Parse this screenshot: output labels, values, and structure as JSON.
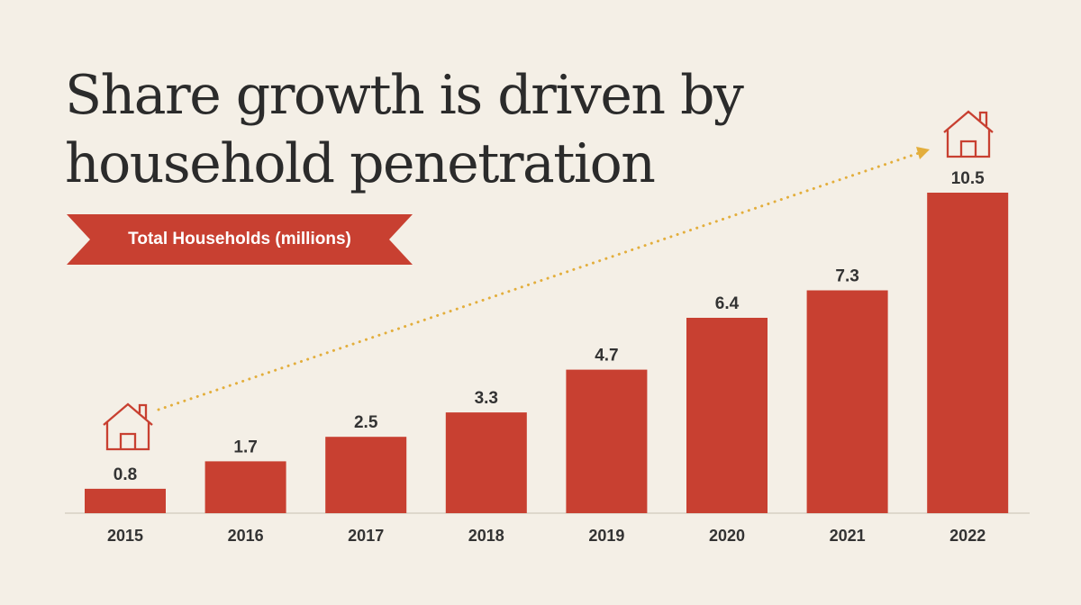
{
  "title_lines": [
    "Share growth is driven by",
    "household penetration"
  ],
  "banner_label": "Total Households (millions)",
  "colors": {
    "background": "#f4efe6",
    "bar": "#c84031",
    "arrow": "#e3ae3c",
    "text": "#2b2b2b"
  },
  "icons": [
    "house-icon-start",
    "house-icon-end"
  ],
  "chart_data": {
    "type": "bar",
    "title": "Share growth is driven by household penetration",
    "subtitle": "Total Households (millions)",
    "categories": [
      "2015",
      "2016",
      "2017",
      "2018",
      "2019",
      "2020",
      "2021",
      "2022"
    ],
    "values": [
      0.8,
      1.7,
      2.5,
      3.3,
      4.7,
      6.4,
      7.3,
      10.5
    ],
    "value_labels": [
      "0.8",
      "1.7",
      "2.5",
      "3.3",
      "4.7",
      "6.4",
      "7.3",
      "10.5"
    ],
    "xlabel": "",
    "ylabel": "",
    "ylim": [
      0,
      10.5
    ],
    "grid": false,
    "annotations": [
      "dotted trend arrow from 2015 to 2022",
      "house icon above 2015 bar",
      "house icon above 2022 bar"
    ]
  }
}
